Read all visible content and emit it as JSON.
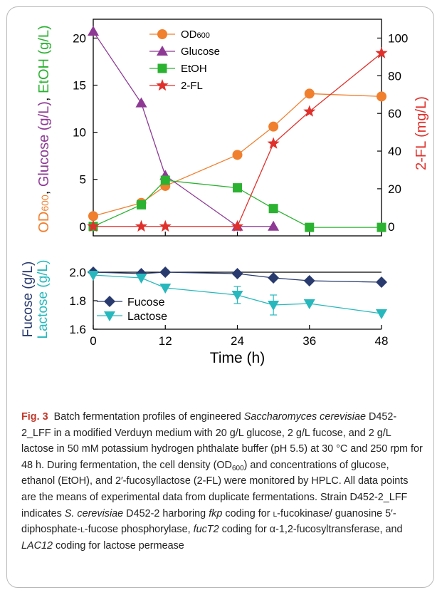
{
  "chart_data": [
    {
      "type": "line",
      "x": [
        0,
        8,
        12,
        24,
        30,
        36,
        48
      ],
      "xlim": [
        0,
        48
      ],
      "left_axis": {
        "label_parts": [
          {
            "text": "OD",
            "sub": "600",
            "color": "#f07f2e"
          },
          {
            "text": ", ",
            "color": "#000000"
          },
          {
            "text": "Glucose (g/L)",
            "color": "#8e3a95"
          },
          {
            "text": ", ",
            "color": "#000000"
          },
          {
            "text": "EtOH (g/L)",
            "color": "#2bb231"
          }
        ],
        "ylim": [
          -1,
          22
        ],
        "ticks": [
          0,
          5,
          10,
          15,
          20
        ]
      },
      "right_axis": {
        "label": "2-FL (mg/L)",
        "color": "#e0302b",
        "ylim": [
          -5,
          110
        ],
        "ticks": [
          0,
          20,
          40,
          60,
          80,
          100
        ]
      },
      "legend": {
        "placement": "top-center"
      },
      "series": [
        {
          "name": "OD",
          "name_sub": "600",
          "axis": "left",
          "marker": "circle",
          "color": "#f07f2e",
          "values": [
            1.1,
            2.5,
            4.3,
            7.6,
            10.6,
            14.1,
            13.8
          ]
        },
        {
          "name": "Glucose",
          "axis": "left",
          "marker": "triangle-up",
          "color": "#8e3a95",
          "values": [
            20.7,
            13.1,
            5.4,
            0.0,
            0.0,
            null,
            null
          ]
        },
        {
          "name": "EtOH",
          "axis": "left",
          "marker": "square",
          "color": "#2bb231",
          "values": [
            0.0,
            2.3,
            4.9,
            4.1,
            1.9,
            -0.1,
            -0.1
          ]
        },
        {
          "name": "2-FL",
          "axis": "right",
          "marker": "star",
          "color": "#e0302b",
          "values": [
            0.0,
            0.0,
            0.0,
            0.0,
            44.0,
            61.0,
            92.0
          ]
        }
      ]
    },
    {
      "type": "line",
      "x": [
        0,
        8,
        12,
        24,
        30,
        36,
        48
      ],
      "xlim": [
        0,
        48
      ],
      "xticks": [
        0,
        12,
        24,
        36,
        48
      ],
      "xlabel": "Time (h)",
      "left_axis": {
        "label_lines": [
          {
            "text": "Fucose (g/L)",
            "color": "#283a6e"
          },
          {
            "text": "Lactose (g/L)",
            "color": "#27b8bd"
          }
        ],
        "ylim": [
          1.6,
          2.0
        ],
        "ticks": [
          1.6,
          1.8,
          2.0
        ],
        "tick_labels": [
          "1.6",
          "1.8",
          "2.0"
        ]
      },
      "legend": {
        "placement": "bottom-left"
      },
      "series": [
        {
          "name": "Fucose",
          "marker": "diamond",
          "color": "#283a6e",
          "values": [
            2.0,
            1.99,
            2.0,
            1.99,
            1.96,
            1.94,
            1.93
          ]
        },
        {
          "name": "Lactose",
          "marker": "triangle-down",
          "color": "#27b8bd",
          "values": [
            1.98,
            1.96,
            1.89,
            1.84,
            1.77,
            1.78,
            1.71
          ],
          "errors": [
            0.0,
            0.0,
            0.0,
            0.06,
            0.07,
            0.0,
            0.0
          ]
        }
      ]
    }
  ],
  "caption": {
    "label": "Fig. 3",
    "text_html": "Batch fermentation profiles of engineered <i>Saccharomyces cerevisiae</i> D452-2_LFF in a modified Verduyn medium with 20 g/L glucose, 2 g/L fucose, and 2 g/L lactose in 50 mM potassium hydrogen phthalate buffer (pH 5.5) at 30 °C and 250 rpm for 48 h. During fermentation, the cell density (OD<sub>600</sub>) and concentrations of glucose, ethanol (EtOH), and 2′-fucosyllactose (2-FL) were monitored by HPLC. All data points are the means of experimental data from duplicate fermentations. Strain D452-2_LFF indicates <i>S. cerevisiae</i> D452-2 harboring <i>fkp</i> coding for <span class=\"sc\">L</span>-fucokinase/ guanosine 5′-diphosphate-<span class=\"sc\">L</span>-fucose phosphorylase, <i>fucT2</i> coding for α-1,2-fucosyltransferase, and <i>LAC12</i> coding for lactose permease"
  }
}
